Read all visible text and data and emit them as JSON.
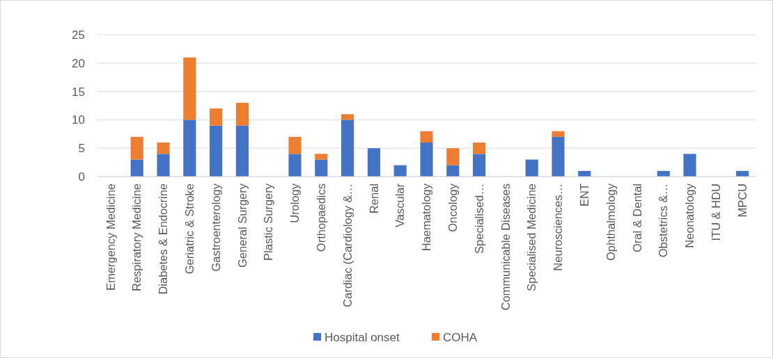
{
  "chart_data": {
    "type": "bar",
    "stacked": true,
    "categories": [
      "Emergency Medicine",
      "Respiratory Medicine",
      "Diabetes & Endocrine",
      "Geriatric & Stroke",
      "Gastroenterology",
      "General Surgery",
      "Plastic Surgery",
      "Urology",
      "Orthopaedics",
      "Cardiac (Cardiology &…",
      "Renal",
      "Vascular",
      "Haematology",
      "Oncology",
      "Specialised…",
      "Communicable Diseases",
      "Specialised Medicine",
      "Neurosciences…",
      "ENT",
      "Ophthalmology",
      "Oral & Dental",
      "Obstetrics &…",
      "Neonatology",
      "ITU & HDU",
      "MPCU"
    ],
    "series": [
      {
        "name": "Hospital onset",
        "color": "#4472c4",
        "values": [
          0,
          3,
          4,
          10,
          9,
          9,
          0,
          4,
          3,
          10,
          5,
          2,
          6,
          2,
          4,
          0,
          3,
          7,
          1,
          0,
          0,
          1,
          4,
          0,
          1
        ]
      },
      {
        "name": "COHA",
        "color": "#ed7d31",
        "values": [
          0,
          4,
          2,
          11,
          3,
          4,
          0,
          3,
          1,
          1,
          0,
          0,
          2,
          3,
          2,
          0,
          0,
          1,
          0,
          0,
          0,
          0,
          0,
          0,
          0
        ]
      }
    ],
    "ylim": [
      0,
      25
    ],
    "yticks": [
      0,
      5,
      10,
      15,
      20,
      25
    ],
    "grid": "y",
    "legend": "bottom"
  }
}
